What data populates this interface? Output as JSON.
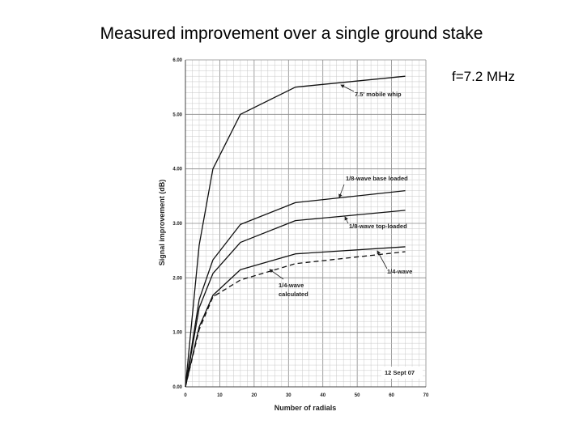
{
  "slide": {
    "title": "Measured improvement over a single ground stake",
    "frequency": "f=7.2 MHz"
  },
  "chart_data": {
    "type": "line",
    "title": "",
    "xlabel": "Number of radials",
    "ylabel": "Signal improvement (dB)",
    "xlim": [
      0,
      70
    ],
    "ylim": [
      0,
      6
    ],
    "x_ticks": [
      "0",
      "10",
      "20",
      "30",
      "40",
      "50",
      "60",
      "70"
    ],
    "y_ticks": [
      "0.00",
      "1.00",
      "2.00",
      "3.00",
      "4.00",
      "5.00",
      "6.00"
    ],
    "grid": true,
    "date_label": "12 Sept 07",
    "x": [
      0,
      4,
      8,
      16,
      32,
      64
    ],
    "series": [
      {
        "name": "7.5' mobile whip",
        "values": [
          0,
          2.6,
          4.0,
          5.0,
          5.5,
          5.7
        ],
        "dashed": false
      },
      {
        "name": "1/8-wave base loaded",
        "values": [
          0,
          1.6,
          2.33,
          2.98,
          3.38,
          3.6
        ],
        "dashed": false
      },
      {
        "name": "1/8-wave top-loaded",
        "values": [
          0,
          1.45,
          2.08,
          2.65,
          3.05,
          3.24
        ],
        "dashed": false
      },
      {
        "name": "1/4-wave",
        "values": [
          0,
          1.1,
          1.68,
          2.15,
          2.44,
          2.57
        ],
        "dashed": false
      },
      {
        "name": "1/4-wave calculated",
        "values": [
          0,
          1.05,
          1.65,
          1.96,
          2.26,
          2.48
        ],
        "dashed": true
      }
    ],
    "annotations": [
      {
        "text": "7.5' mobile whip",
        "series": 0
      },
      {
        "text": "1/8-wave base loaded",
        "series": 1
      },
      {
        "text": "1/8-wave top-loaded",
        "series": 2
      },
      {
        "text": "1/4-wave",
        "series": 3
      },
      {
        "text": "1/4-wave",
        "series": 4
      },
      {
        "text": "calculated",
        "series": 4
      }
    ]
  }
}
